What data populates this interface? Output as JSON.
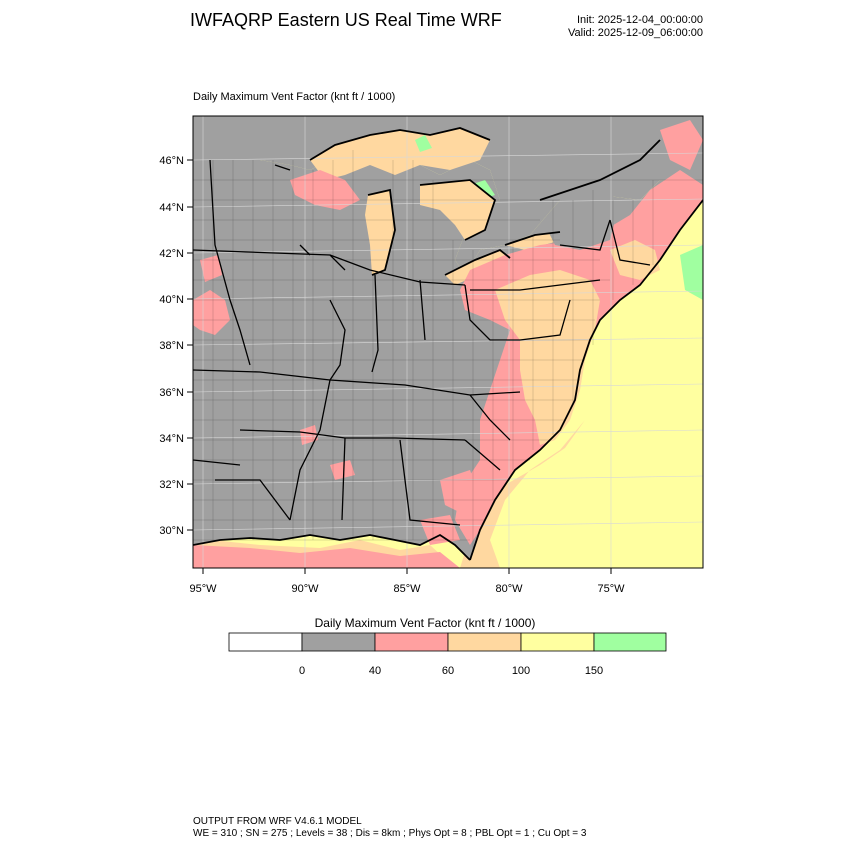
{
  "header": {
    "title": "IWFAQRP Eastern US Real Time WRF",
    "init": "Init: 2025-12-04_00:00:00",
    "valid": "Valid: 2025-12-09_06:00:00"
  },
  "map": {
    "title": "Daily Maximum Vent Factor   (knt ft / 1000)",
    "lat_labels": [
      "46°N",
      "44°N",
      "42°N",
      "40°N",
      "38°N",
      "36°N",
      "34°N",
      "32°N",
      "30°N"
    ],
    "lon_labels": [
      "95°W",
      "90°W",
      "85°W",
      "80°W",
      "75°W"
    ],
    "colors": {
      "land_low": "#a0a0a0",
      "range_40_60": "#ffa0a0",
      "range_60_100": "#ffd8a0",
      "range_100_150": "#ffffa0",
      "range_150_plus": "#a0ffa0"
    }
  },
  "legend": {
    "title": "Daily Maximum Vent Factor  (knt ft / 1000)",
    "swatches": [
      "#ffffff",
      "#a0a0a0",
      "#ffa0a0",
      "#ffd8a0",
      "#ffffa0",
      "#a0ffa0"
    ],
    "labels": [
      "0",
      "40",
      "60",
      "100",
      "150"
    ]
  },
  "footer": {
    "model": "OUTPUT FROM WRF V4.6.1 MODEL",
    "params": "WE = 310 ; SN = 275 ; Levels = 38 ; Dis = 8km ; Phys Opt = 8 ; PBL Opt = 1 ; Cu Opt = 3"
  }
}
